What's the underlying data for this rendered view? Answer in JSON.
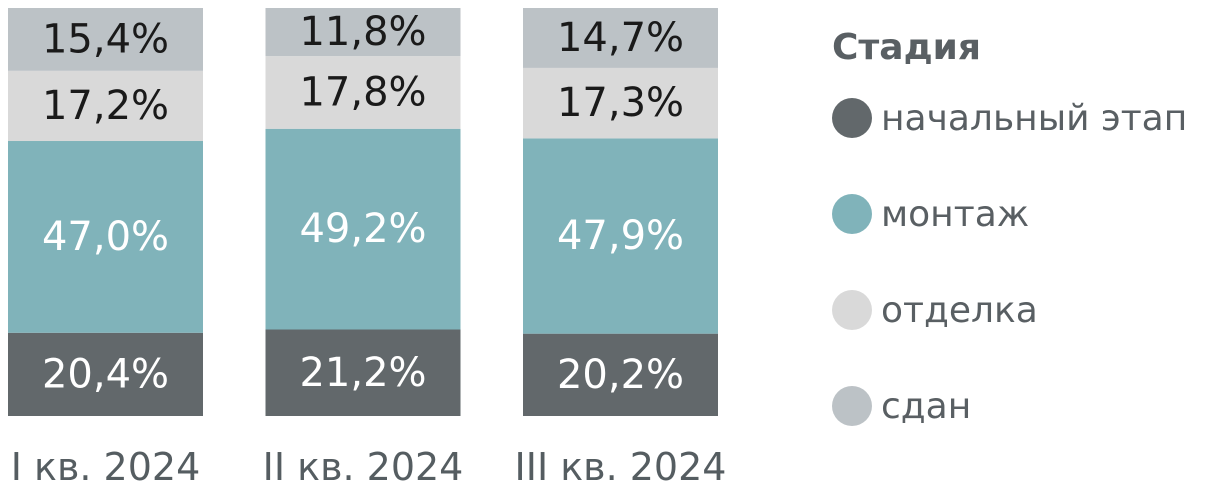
{
  "chart_data": {
    "type": "bar",
    "stacked": true,
    "categories": [
      "I кв. 2024",
      "II кв. 2024",
      "III кв. 2024"
    ],
    "series": [
      {
        "name": "начальный этап",
        "color": "#62686b",
        "values": [
          20.4,
          21.2,
          20.2
        ],
        "labels": [
          "20,4%",
          "21,2%",
          "20,2%"
        ]
      },
      {
        "name": "монтаж",
        "color": "#80b3ba",
        "values": [
          47.0,
          49.2,
          47.9
        ],
        "labels": [
          "47,0%",
          "49,2%",
          "47,9%"
        ]
      },
      {
        "name": "отделка",
        "color": "#d9d9d9",
        "values": [
          17.2,
          17.8,
          17.3
        ],
        "labels": [
          "17,2%",
          "17,8%",
          "17,3%"
        ]
      },
      {
        "name": "сдан",
        "color": "#bcc2c6",
        "values": [
          15.4,
          11.8,
          14.7
        ],
        "labels": [
          "15,4%",
          "11,8%",
          "14,7%"
        ]
      }
    ],
    "label_colors": [
      "#ffffff",
      "#ffffff",
      "#1a1a1a",
      "#1a1a1a"
    ],
    "legend_title": "Стадия",
    "legend_position": "right",
    "ylim": [
      0,
      100
    ],
    "grid": false
  }
}
